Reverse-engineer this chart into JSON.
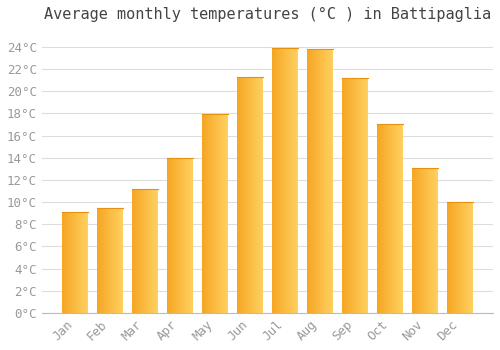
{
  "title": "Average monthly temperatures (°C ) in Battipaglia",
  "months": [
    "Jan",
    "Feb",
    "Mar",
    "Apr",
    "May",
    "Jun",
    "Jul",
    "Aug",
    "Sep",
    "Oct",
    "Nov",
    "Dec"
  ],
  "values": [
    9.1,
    9.5,
    11.2,
    14.0,
    17.9,
    21.3,
    23.9,
    23.8,
    21.2,
    17.0,
    13.1,
    10.0
  ],
  "bar_color_left": "#F5A623",
  "bar_color_right": "#FFD060",
  "background_color": "#FFFFFF",
  "grid_color": "#DDDDDD",
  "text_color": "#999999",
  "ylim": [
    0,
    25.5
  ],
  "ytick_step": 2,
  "title_fontsize": 11,
  "tick_fontsize": 9
}
